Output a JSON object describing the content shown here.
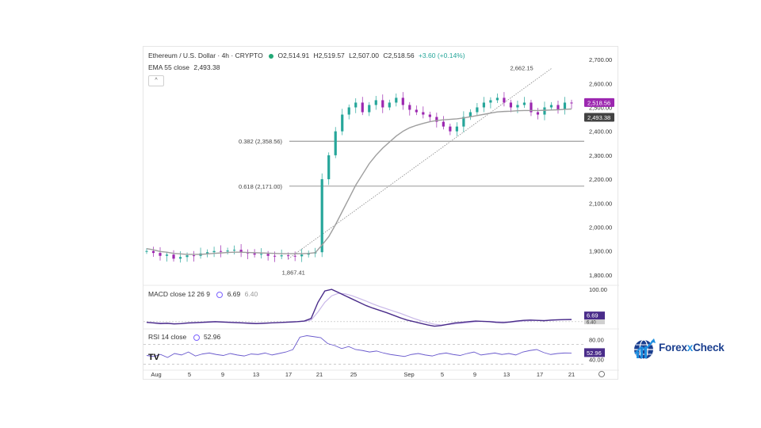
{
  "legend": {
    "title": "Ethereum / U.S. Dollar · 4h · CRYPTO",
    "open": "O2,514.91",
    "high": "H2,519.57",
    "low": "L2,507.00",
    "close": "C2,518.56",
    "change": "+3.60 (+0.14%)",
    "ema_name": "EMA 55 close",
    "ema_value": "2,493.38",
    "collapse_icon": "^"
  },
  "macd_legend": {
    "name": "MACD close 12 26 9",
    "v1": "6.69",
    "v2": "6.40"
  },
  "rsi_legend": {
    "name": "RSI 14 close",
    "value": "52.96"
  },
  "annotations": {
    "high_label": "2,662.15",
    "low_label": "1,867.41",
    "fib_382": "0.382 (2,358.56)",
    "fib_618": "0.618 (2,171.00)"
  },
  "price_badges": {
    "last": "2,518.56",
    "ema": "2,493.38"
  },
  "macd_badges": {
    "a": "6.69",
    "b": "6.40"
  },
  "rsi_badge": "52.96",
  "colors": {
    "up": "#26a69a",
    "down": "#9c27b0",
    "ema": "#9e9e9e",
    "macd": "#4a2c8a",
    "signal": "#c9b8e8",
    "badge_last": "#9c27b0",
    "badge_ema": "#424242"
  },
  "icons": {
    "settings": "gear-icon",
    "tv_logo": "tradingview-logo"
  },
  "logo": {
    "brand_a": "Forex",
    "brand_x": "x",
    "brand_b": "Check",
    "icon": "globe-chart-icon"
  },
  "chart_data": [
    {
      "type": "candlestick",
      "title": "Ethereum / U.S. Dollar · 4h · CRYPTO",
      "y_ticks": [
        "2,700.00",
        "2,600.00",
        "2,500.00",
        "2,400.00",
        "2,300.00",
        "2,200.00",
        "2,100.00",
        "2,000.00",
        "1,900.00",
        "1,800.00"
      ],
      "ylim": [
        1760,
        2740
      ],
      "x_ticks": [
        "Aug",
        "5",
        "9",
        "13",
        "17",
        "21",
        "25",
        "Sep",
        "5",
        "9",
        "13",
        "17",
        "21"
      ],
      "close_series": [
        1900,
        1892,
        1880,
        1885,
        1868,
        1875,
        1882,
        1880,
        1890,
        1895,
        1900,
        1898,
        1902,
        1905,
        1895,
        1890,
        1885,
        1888,
        1880,
        1878,
        1882,
        1880,
        1878,
        1885,
        1890,
        1895,
        2200,
        2300,
        2400,
        2470,
        2500,
        2520,
        2480,
        2510,
        2530,
        2500,
        2520,
        2540,
        2510,
        2490,
        2480,
        2470,
        2460,
        2440,
        2420,
        2400,
        2420,
        2460,
        2480,
        2500,
        2520,
        2530,
        2540,
        2520,
        2500,
        2510,
        2520,
        2480,
        2470,
        2500,
        2510,
        2490,
        2520,
        2518
      ],
      "ema55": [
        1910,
        1905,
        1898,
        1895,
        1890,
        1888,
        1886,
        1886,
        1886,
        1888,
        1890,
        1892,
        1894,
        1895,
        1895,
        1894,
        1893,
        1892,
        1891,
        1890,
        1889,
        1889,
        1889,
        1889,
        1890,
        1893,
        1925,
        1960,
        2010,
        2065,
        2120,
        2175,
        2220,
        2265,
        2300,
        2330,
        2355,
        2380,
        2400,
        2415,
        2425,
        2433,
        2440,
        2445,
        2448,
        2450,
        2452,
        2456,
        2461,
        2466,
        2471,
        2476,
        2481,
        2483,
        2484,
        2486,
        2487,
        2487,
        2487,
        2488,
        2489,
        2490,
        2492,
        2493.38
      ],
      "swing_high": 2662.15,
      "swing_low": 1867.41,
      "fib_levels": [
        {
          "ratio": 0.382,
          "price": 2358.56
        },
        {
          "ratio": 0.618,
          "price": 2171.0
        }
      ],
      "last_close": 2518.56,
      "ema_last": 2493.38
    },
    {
      "type": "line",
      "title": "MACD close 12 26 9",
      "y_ticks": [
        "100.00"
      ],
      "series": [
        {
          "name": "MACD",
          "values": [
            -2,
            -4,
            -6,
            -5,
            -7,
            -6,
            -4,
            -3,
            -2,
            -1,
            0,
            -1,
            -2,
            -3,
            -4,
            -5,
            -6,
            -5,
            -4,
            -3,
            -2,
            -1,
            0,
            2,
            10,
            60,
            95,
            100,
            90,
            80,
            70,
            60,
            50,
            42,
            35,
            28,
            20,
            12,
            5,
            0,
            -5,
            -10,
            -14,
            -12,
            -8,
            -4,
            -2,
            0,
            2,
            1,
            0,
            -2,
            -3,
            -1,
            2,
            4,
            5,
            4,
            3,
            5,
            6,
            6.5,
            6.69
          ]
        },
        {
          "name": "Signal",
          "values": [
            -2,
            -3,
            -4,
            -5,
            -6,
            -6,
            -5,
            -4,
            -3,
            -2,
            -1,
            -1,
            -1,
            -2,
            -3,
            -4,
            -5,
            -5,
            -4,
            -3,
            -2,
            -1,
            0,
            1,
            5,
            30,
            60,
            80,
            88,
            86,
            80,
            72,
            64,
            55,
            47,
            40,
            33,
            26,
            18,
            10,
            3,
            -3,
            -8,
            -10,
            -9,
            -7,
            -5,
            -3,
            0,
            1,
            1,
            0,
            -1,
            -1,
            0,
            2,
            3,
            4,
            4,
            4,
            5,
            5.8,
            6.4
          ]
        }
      ]
    },
    {
      "type": "line",
      "title": "RSI 14 close",
      "y_ticks": [
        "80.00",
        "40.00"
      ],
      "series": [
        {
          "name": "RSI",
          "values": [
            48,
            46,
            50,
            44,
            52,
            49,
            55,
            47,
            51,
            53,
            50,
            48,
            52,
            49,
            47,
            51,
            50,
            53,
            49,
            52,
            55,
            60,
            85,
            88,
            86,
            84,
            72,
            68,
            62,
            66,
            60,
            58,
            55,
            57,
            53,
            50,
            48,
            46,
            50,
            52,
            49,
            47,
            51,
            53,
            50,
            48,
            52,
            55,
            49,
            51,
            53,
            50,
            52,
            49,
            55,
            58,
            60,
            54,
            50,
            52,
            53,
            52.96
          ]
        }
      ]
    }
  ]
}
